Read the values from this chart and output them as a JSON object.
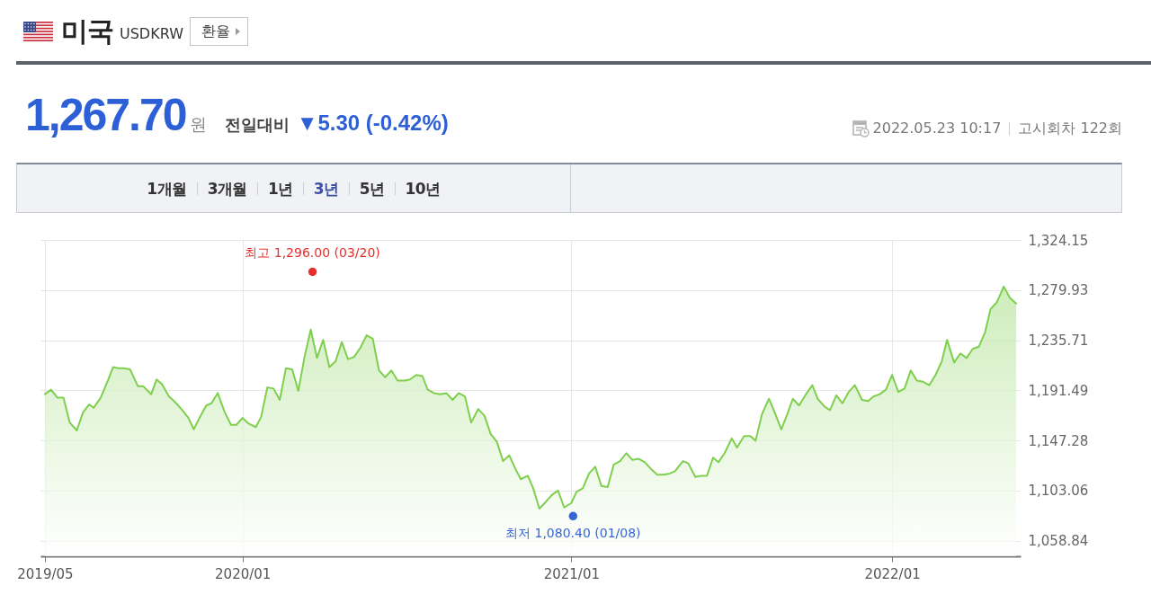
{
  "chart_data": {
    "type": "area",
    "title": "미국",
    "subtitle": "USDKRW",
    "annotations": [
      "환율",
      "1,267.70",
      "원",
      "전일대비",
      "▼5.30 (-0.42%)",
      "2022.05.23 10:17",
      "고시회차 122회",
      "1개월",
      "3개월",
      "1년",
      "3년",
      "5년",
      "10년",
      {
        "text": "최고 1,296.00 (03/20)",
        "x": "2020-03-20",
        "y": 1296
      },
      {
        "text": "최저 1,080.40 (01/08)",
        "x": "2021-01-08",
        "y": 1080.4
      }
    ],
    "x": [
      "2019-05-23",
      "2019-05-30",
      "2019-06-06",
      "2019-06-13",
      "2019-06-20",
      "2019-06-28",
      "2019-07-05",
      "2019-07-12",
      "2019-07-17",
      "2019-07-25",
      "2019-08-02",
      "2019-08-08",
      "2019-08-14",
      "2019-08-20",
      "2019-08-27",
      "2019-09-05",
      "2019-09-11",
      "2019-09-20",
      "2019-09-26",
      "2019-10-02",
      "2019-10-10",
      "2019-10-17",
      "2019-10-25",
      "2019-11-01",
      "2019-11-07",
      "2019-11-14",
      "2019-11-21",
      "2019-11-27",
      "2019-12-04",
      "2019-12-12",
      "2019-12-19",
      "2019-12-25",
      "2020-01-01",
      "2020-01-08",
      "2020-01-16",
      "2020-01-22",
      "2020-01-29",
      "2020-02-05",
      "2020-02-12",
      "2020-02-19",
      "2020-02-26",
      "2020-03-04",
      "2020-03-11",
      "2020-03-18",
      "2020-03-25",
      "2020-04-01",
      "2020-04-08",
      "2020-04-15",
      "2020-04-22",
      "2020-04-29",
      "2020-05-06",
      "2020-05-13",
      "2020-05-20",
      "2020-05-27",
      "2020-06-03",
      "2020-06-10",
      "2020-06-17",
      "2020-06-24",
      "2020-07-02",
      "2020-07-08",
      "2020-07-15",
      "2020-07-22",
      "2020-07-28",
      "2020-08-04",
      "2020-08-11",
      "2020-08-18",
      "2020-08-25",
      "2020-09-01",
      "2020-09-08",
      "2020-09-15",
      "2020-09-23",
      "2020-09-30",
      "2020-10-07",
      "2020-10-14",
      "2020-10-21",
      "2020-10-28",
      "2020-11-04",
      "2020-11-10",
      "2020-11-18",
      "2020-11-24",
      "2020-12-01",
      "2020-12-07",
      "2020-12-15",
      "2020-12-22",
      "2020-12-29",
      "2021-01-06",
      "2021-01-12",
      "2021-01-19",
      "2021-01-26",
      "2021-02-02",
      "2021-02-09",
      "2021-02-16",
      "2021-02-23",
      "2021-03-02",
      "2021-03-09",
      "2021-03-16",
      "2021-03-23",
      "2021-03-30",
      "2021-04-06",
      "2021-04-13",
      "2021-04-20",
      "2021-04-27",
      "2021-05-03",
      "2021-05-12",
      "2021-05-18",
      "2021-05-26",
      "2021-06-01",
      "2021-06-08",
      "2021-06-15",
      "2021-06-21",
      "2021-06-28",
      "2021-07-06",
      "2021-07-12",
      "2021-07-20",
      "2021-07-27",
      "2021-08-02",
      "2021-08-09",
      "2021-08-17",
      "2021-08-24",
      "2021-08-31",
      "2021-09-07",
      "2021-09-13",
      "2021-09-20",
      "2021-09-27",
      "2021-10-05",
      "2021-10-11",
      "2021-10-19",
      "2021-10-25",
      "2021-11-01",
      "2021-11-08",
      "2021-11-15",
      "2021-11-22",
      "2021-11-30",
      "2021-12-07",
      "2021-12-13",
      "2021-12-20",
      "2021-12-27",
      "2022-01-03",
      "2022-01-10",
      "2022-01-17",
      "2022-01-24",
      "2022-01-31",
      "2022-02-07",
      "2022-02-14",
      "2022-02-21",
      "2022-02-28",
      "2022-03-06",
      "2022-03-14",
      "2022-03-21",
      "2022-03-28",
      "2022-04-04",
      "2022-04-11",
      "2022-04-18",
      "2022-04-24",
      "2022-05-01",
      "2022-05-09",
      "2022-05-16",
      "2022-05-23"
    ],
    "series": [
      {
        "color": "#7fcf4f",
        "values": [
          1188,
          1192,
          1185,
          1185,
          1163,
          1156,
          1172,
          1179,
          1176,
          1185,
          1200,
          1212,
          1211,
          1211,
          1210,
          1195,
          1195,
          1188,
          1201,
          1197,
          1186,
          1181,
          1174,
          1167,
          1157,
          1168,
          1178,
          1180,
          1189,
          1172,
          1161,
          1161,
          1167,
          1162,
          1159,
          1168,
          1194,
          1193,
          1183,
          1211,
          1210,
          1191,
          1221,
          1245,
          1220,
          1236,
          1212,
          1217,
          1234,
          1219,
          1221,
          1229,
          1240,
          1237,
          1209,
          1203,
          1209,
          1200,
          1200,
          1201,
          1205,
          1204,
          1192,
          1189,
          1188,
          1189,
          1183,
          1189,
          1186,
          1163,
          1175,
          1169,
          1153,
          1146,
          1129,
          1134,
          1122,
          1113,
          1116,
          1105,
          1087,
          1092,
          1099,
          1103,
          1088,
          1092,
          1102,
          1105,
          1118,
          1124,
          1107,
          1106,
          1126,
          1129,
          1136,
          1130,
          1131,
          1128,
          1122,
          1117,
          1117,
          1118,
          1120,
          1129,
          1127,
          1115,
          1116,
          1116,
          1132,
          1128,
          1136,
          1149,
          1141,
          1151,
          1151,
          1147,
          1170,
          1184,
          1171,
          1157,
          1171,
          1184,
          1178,
          1187,
          1196,
          1184,
          1177,
          1174,
          1187,
          1180,
          1190,
          1196,
          1183,
          1182,
          1186,
          1188,
          1192,
          1205,
          1190,
          1193,
          1209,
          1200,
          1199,
          1196,
          1205,
          1217,
          1236,
          1216,
          1224,
          1220,
          1228,
          1230,
          1243,
          1263,
          1269,
          1283,
          1273,
          1268
        ]
      }
    ],
    "xlim": [
      "2019-05-18",
      "2022-05-28"
    ],
    "xticks": [
      {
        "value": "2019-05-23",
        "label": "2019/05"
      },
      {
        "value": "2020-01-01",
        "label": "2020/01"
      },
      {
        "value": "2021-01-06",
        "label": "2021/01"
      },
      {
        "value": "2022-01-03",
        "label": "2022/01"
      }
    ],
    "ylim": [
      1045,
      1324.15
    ],
    "yticks": [
      {
        "value": 1058.84,
        "label": "1,058.84"
      },
      {
        "value": 1103.06,
        "label": "1,103.06"
      },
      {
        "value": 1147.28,
        "label": "1,147.28"
      },
      {
        "value": 1191.49,
        "label": "1,191.49"
      },
      {
        "value": 1235.71,
        "label": "1,235.71"
      },
      {
        "value": 1279.93,
        "label": "1,279.93"
      },
      {
        "value": 1324.15,
        "label": "1,324.15"
      }
    ],
    "grid": true
  }
}
